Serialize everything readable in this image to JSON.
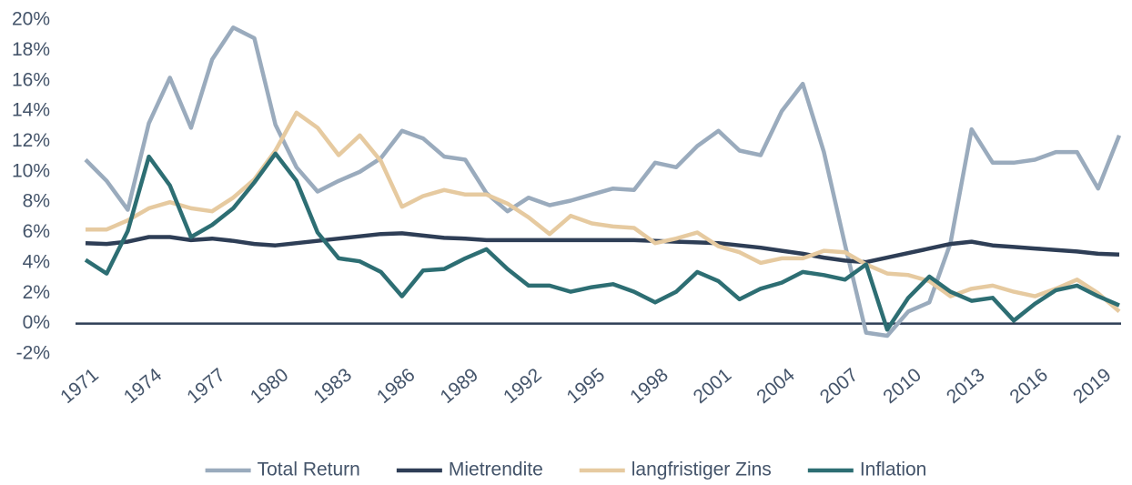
{
  "chart_data": {
    "type": "line",
    "x": [
      1971,
      1972,
      1973,
      1974,
      1975,
      1976,
      1977,
      1978,
      1979,
      1980,
      1981,
      1982,
      1983,
      1984,
      1985,
      1986,
      1987,
      1988,
      1989,
      1990,
      1991,
      1992,
      1993,
      1994,
      1995,
      1996,
      1997,
      1998,
      1999,
      2000,
      2001,
      2002,
      2003,
      2004,
      2005,
      2006,
      2007,
      2008,
      2009,
      2010,
      2011,
      2012,
      2013,
      2014,
      2015,
      2016,
      2017,
      2018,
      2019,
      2020
    ],
    "xlim": [
      1971,
      2020
    ],
    "xticks": [
      1971,
      1974,
      1977,
      1980,
      1983,
      1986,
      1989,
      1992,
      1995,
      1998,
      2001,
      2004,
      2007,
      2010,
      2013,
      2016,
      2019
    ],
    "ylim": [
      -2,
      20
    ],
    "yticks": [
      {
        "value": -2,
        "label": "-2%"
      },
      {
        "value": 0,
        "label": "0%"
      },
      {
        "value": 2,
        "label": "2%"
      },
      {
        "value": 4,
        "label": "4%"
      },
      {
        "value": 6,
        "label": "6%"
      },
      {
        "value": 8,
        "label": "8%"
      },
      {
        "value": 10,
        "label": "10%"
      },
      {
        "value": 12,
        "label": "12%"
      },
      {
        "value": 14,
        "label": "14%"
      },
      {
        "value": 16,
        "label": "16%"
      },
      {
        "value": 18,
        "label": "18%"
      },
      {
        "value": 20,
        "label": "20%"
      }
    ],
    "grid": false,
    "legend": "bottom",
    "series": [
      {
        "name": "Total Return",
        "color": "#9aabbd",
        "values": [
          10.8,
          9.4,
          7.5,
          13.2,
          16.2,
          12.9,
          17.4,
          19.5,
          18.8,
          13.1,
          10.3,
          8.7,
          9.4,
          10.0,
          10.9,
          12.7,
          12.2,
          11.0,
          10.8,
          8.6,
          7.4,
          8.3,
          7.8,
          8.1,
          8.5,
          8.9,
          8.8,
          10.6,
          10.3,
          11.7,
          12.7,
          11.4,
          11.1,
          14.0,
          15.8,
          11.3,
          5.2,
          -0.6,
          -0.8,
          0.8,
          1.4,
          5.3,
          12.8,
          10.6,
          10.6,
          10.8,
          11.3,
          11.3,
          8.9,
          12.4
        ]
      },
      {
        "name": "Mietrendite",
        "color": "#2e3e56",
        "values": [
          5.3,
          5.25,
          5.4,
          5.7,
          5.7,
          5.5,
          5.6,
          5.45,
          5.25,
          5.15,
          5.3,
          5.45,
          5.6,
          5.75,
          5.9,
          5.95,
          5.8,
          5.65,
          5.6,
          5.5,
          5.5,
          5.5,
          5.5,
          5.5,
          5.5,
          5.5,
          5.5,
          5.45,
          5.4,
          5.35,
          5.3,
          5.15,
          5.0,
          4.8,
          4.6,
          4.35,
          4.15,
          4.05,
          4.35,
          4.65,
          4.95,
          5.25,
          5.4,
          5.15,
          5.05,
          4.95,
          4.85,
          4.75,
          4.6,
          4.55
        ]
      },
      {
        "name": "langfristiger Zins",
        "color": "#e6caa0",
        "values": [
          6.2,
          6.2,
          6.8,
          7.6,
          8.0,
          7.6,
          7.4,
          8.3,
          9.5,
          11.4,
          13.9,
          12.9,
          11.1,
          12.4,
          10.7,
          7.7,
          8.4,
          8.8,
          8.5,
          8.5,
          7.9,
          7.0,
          5.9,
          7.1,
          6.6,
          6.4,
          6.3,
          5.3,
          5.6,
          6.0,
          5.1,
          4.7,
          4.0,
          4.3,
          4.3,
          4.8,
          4.7,
          3.9,
          3.3,
          3.2,
          2.8,
          1.8,
          2.3,
          2.5,
          2.1,
          1.8,
          2.3,
          2.9,
          2.0,
          0.8
        ]
      },
      {
        "name": "Inflation",
        "color": "#2d6e73",
        "values": [
          4.2,
          3.3,
          6.1,
          11.0,
          9.1,
          5.7,
          6.5,
          7.6,
          9.3,
          11.2,
          9.4,
          6.0,
          4.3,
          4.1,
          3.4,
          1.8,
          3.5,
          3.6,
          4.3,
          4.9,
          3.6,
          2.5,
          2.5,
          2.1,
          2.4,
          2.6,
          2.1,
          1.4,
          2.1,
          3.4,
          2.8,
          1.6,
          2.3,
          2.7,
          3.4,
          3.2,
          2.9,
          3.9,
          -0.4,
          1.7,
          3.1,
          2.1,
          1.5,
          1.7,
          0.2,
          1.3,
          2.2,
          2.5,
          1.8,
          1.2
        ]
      }
    ]
  }
}
